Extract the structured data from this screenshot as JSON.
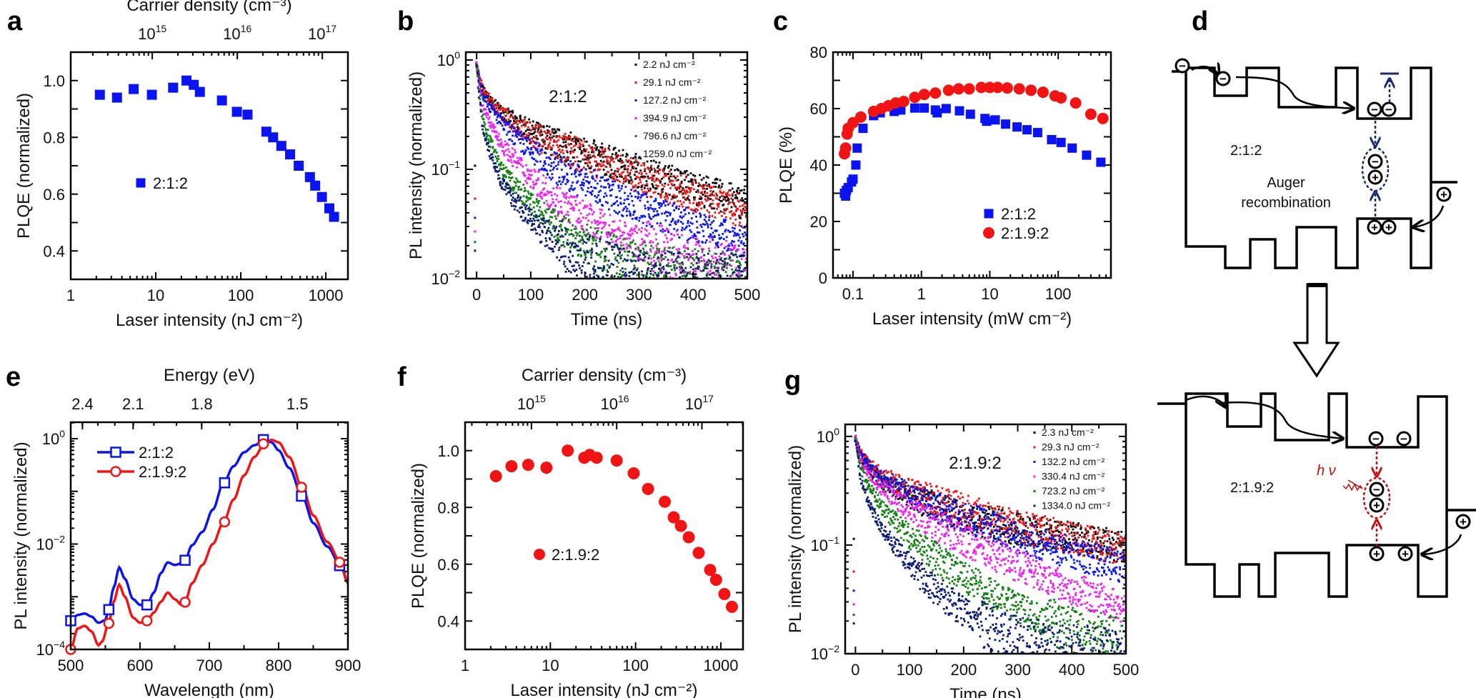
{
  "panel_letters": {
    "a": "a",
    "b": "b",
    "c": "c",
    "d": "d",
    "e": "e",
    "f": "f",
    "g": "g"
  },
  "colors": {
    "blue": "#0a14f0",
    "red": "#f01414",
    "black": "#000000",
    "magenta": "#f020f0",
    "green": "#108010",
    "navy": "#0a1a70",
    "dark_red": "#c01010",
    "dark_blue": "#1a2a6a"
  },
  "chart_data": [
    {
      "panel": "a",
      "type": "scatter",
      "xlabel": "Laser intensity (nJ cm⁻²)",
      "ylabel": "PLQE (normalized)",
      "xscale": "log",
      "xlim": [
        1,
        1820
      ],
      "ylim": [
        0.3,
        1.1
      ],
      "xticks": [
        1,
        10,
        100,
        1000
      ],
      "xtick_labels": [
        "1",
        "10",
        "100",
        "1000"
      ],
      "yticks": [
        0.4,
        0.6,
        0.8,
        1.0
      ],
      "ytick_labels": [
        "0.4",
        "0.6",
        "0.8",
        "1.0"
      ],
      "top_axis": {
        "label": "Carrier density (cm⁻³)",
        "tick_labels": [
          "10¹⁵",
          "10¹⁶",
          "10¹⁷"
        ],
        "tick_bases": [
          "10",
          "10",
          "10"
        ],
        "tick_exps": [
          "15",
          "16",
          "17"
        ],
        "laser_equivalent": [
          9.1,
          91,
          908
        ]
      },
      "legend": "top-left-center",
      "series": [
        {
          "name": "2:1:2",
          "marker": "square",
          "color": "#0a14f0",
          "x": [
            2.2,
            3.5,
            5.5,
            9,
            16,
            23,
            28,
            33,
            60,
            90,
            120,
            200,
            240,
            300,
            380,
            480,
            650,
            750,
            900,
            1100,
            1250
          ],
          "y": [
            0.95,
            0.94,
            0.97,
            0.95,
            0.975,
            1.0,
            0.985,
            0.96,
            0.93,
            0.89,
            0.88,
            0.82,
            0.8,
            0.77,
            0.74,
            0.7,
            0.66,
            0.63,
            0.59,
            0.55,
            0.52
          ]
        }
      ]
    },
    {
      "panel": "b",
      "type": "scatter",
      "xlabel": "Time (ns)",
      "ylabel": "PL intensity (normalized)",
      "annotation": "2:1:2",
      "xscale": "linear",
      "yscale": "log",
      "xlim": [
        -20,
        500
      ],
      "ylim": [
        0.01,
        1.18
      ],
      "xticks": [
        0,
        100,
        200,
        300,
        400,
        500
      ],
      "xtick_labels": [
        "0",
        "100",
        "200",
        "300",
        "400",
        "500"
      ],
      "yticks": [
        1,
        0.1,
        0.01
      ],
      "ytick_bases": [
        "10",
        "10",
        "10"
      ],
      "ytick_exps": [
        "0",
        "−1",
        "−2"
      ],
      "legend": "top-right",
      "x": [
        0,
        10,
        25,
        50,
        100,
        150,
        200,
        300,
        400,
        500
      ],
      "series": [
        {
          "name": "2.2 nJ cm⁻²",
          "color": "#000000",
          "y": [
            0.9,
            0.55,
            0.42,
            0.32,
            0.22,
            0.17,
            0.14,
            0.095,
            0.068,
            0.048
          ]
        },
        {
          "name": "29.1 nJ cm⁻²",
          "color": "#f01414",
          "y": [
            0.9,
            0.55,
            0.42,
            0.31,
            0.21,
            0.16,
            0.13,
            0.085,
            0.058,
            0.04
          ]
        },
        {
          "name": "127.2 nJ cm⁻²",
          "color": "#0a14f0",
          "y": [
            0.9,
            0.5,
            0.37,
            0.25,
            0.145,
            0.1,
            0.075,
            0.045,
            0.03,
            0.022
          ]
        },
        {
          "name": "394.9 nJ cm⁻²",
          "color": "#f020f0",
          "y": [
            0.9,
            0.4,
            0.26,
            0.16,
            0.085,
            0.052,
            0.036,
            0.021,
            0.015,
            0.012
          ]
        },
        {
          "name": "796.6 nJ cm⁻²",
          "color": "#108010",
          "y": [
            0.9,
            0.3,
            0.18,
            0.095,
            0.048,
            0.029,
            0.02,
            0.013,
            0.011,
            0.01
          ]
        },
        {
          "name": "1259.0 nJ cm⁻²",
          "color": "#0a1a70",
          "y": [
            0.9,
            0.25,
            0.14,
            0.07,
            0.034,
            0.021,
            0.015,
            0.011,
            0.01,
            0.01
          ]
        }
      ]
    },
    {
      "panel": "c",
      "type": "scatter",
      "xlabel": "Laser intensity (mW cm⁻²)",
      "ylabel": "PLQE (%)",
      "xscale": "log",
      "xlim": [
        0.051,
        590
      ],
      "ylim": [
        0,
        80
      ],
      "xticks": [
        0.1,
        1,
        10,
        100
      ],
      "xtick_labels": [
        "0.1",
        "1",
        "10",
        "100"
      ],
      "yticks": [
        0,
        20,
        40,
        60,
        80
      ],
      "ytick_labels": [
        "0",
        "20",
        "40",
        "60",
        "80"
      ],
      "legend": "bottom-right",
      "series": [
        {
          "name": "2:1:2",
          "marker": "square",
          "color": "#0a14f0",
          "x": [
            0.075,
            0.078,
            0.08,
            0.085,
            0.095,
            0.1,
            0.11,
            0.115,
            0.14,
            0.2,
            0.25,
            0.4,
            0.5,
            0.8,
            1.1,
            1.6,
            1.7,
            2.3,
            3.6,
            5.2,
            8.5,
            9,
            12,
            17,
            25,
            35,
            50,
            80,
            110,
            160,
            260,
            420
          ],
          "y": [
            30,
            29,
            31,
            32,
            34,
            35,
            40,
            46,
            53,
            57.5,
            58.5,
            59,
            59.5,
            60.2,
            60.2,
            59.5,
            58.5,
            60,
            59.2,
            58,
            56.5,
            55.5,
            56,
            54.5,
            53.5,
            52.5,
            51.5,
            49,
            48,
            46,
            43.5,
            41
          ]
        },
        {
          "name": "2:1.9:2",
          "marker": "circle",
          "color": "#f01414",
          "x": [
            0.075,
            0.078,
            0.082,
            0.085,
            0.1,
            0.13,
            0.2,
            0.26,
            0.33,
            0.42,
            0.55,
            0.8,
            1.1,
            1.6,
            2.5,
            3.5,
            5,
            7.5,
            10,
            13,
            18,
            27,
            40,
            60,
            90,
            110,
            180,
            300,
            450
          ],
          "y": [
            44,
            46,
            51,
            53,
            55,
            57,
            59,
            60,
            61,
            62,
            62.5,
            64,
            65,
            65.5,
            66.5,
            67,
            67,
            67.5,
            67.5,
            67.5,
            67.3,
            67,
            66.5,
            65.8,
            64.5,
            63.8,
            62,
            58,
            56.5
          ]
        }
      ]
    },
    {
      "panel": "e",
      "type": "line",
      "xlabel": "Wavelength (nm)",
      "ylabel": "PL intensity (normalized)",
      "xscale": "linear",
      "yscale": "log",
      "xlim": [
        500,
        900
      ],
      "ylim": [
        0.0001,
        2.05
      ],
      "xticks": [
        500,
        600,
        700,
        800,
        900
      ],
      "xtick_labels": [
        "500",
        "600",
        "700",
        "800",
        "900"
      ],
      "yticks": [
        1,
        0.01,
        0.0001
      ],
      "ytick_bases": [
        "10",
        "10",
        "10"
      ],
      "ytick_exps": [
        "0",
        "−2",
        "−4"
      ],
      "top_axis": {
        "label": "Energy (eV)",
        "tick_labels": [
          "2.4",
          "2.1",
          "1.8",
          "1.5"
        ],
        "wavelength_equivalent": [
          517,
          590,
          689,
          827
        ]
      },
      "legend": "top-left",
      "series": [
        {
          "name": "2:1:2",
          "marker": "open-square",
          "color": "#0a14f0",
          "x": [
            500,
            510,
            520,
            530,
            540,
            550,
            555,
            562,
            570,
            578,
            590,
            600,
            610,
            620,
            630,
            640,
            650,
            660,
            665,
            675,
            690,
            705,
            720,
            735,
            750,
            765,
            780,
            790,
            800,
            815,
            835,
            850,
            870,
            890,
            900
          ],
          "y": [
            0.00035,
            0.00045,
            0.00048,
            0.00042,
            0.00032,
            0.00036,
            0.0006,
            0.0015,
            0.0036,
            0.0022,
            0.0009,
            0.0007,
            0.0007,
            0.0012,
            0.0028,
            0.0045,
            0.004,
            0.0043,
            0.005,
            0.0095,
            0.017,
            0.045,
            0.14,
            0.3,
            0.55,
            0.75,
            0.97,
            0.85,
            0.6,
            0.28,
            0.075,
            0.025,
            0.009,
            0.0038,
            0.0018
          ]
        },
        {
          "name": "2:1.9:2",
          "marker": "open-circle",
          "color": "#f01414",
          "x": [
            500,
            510,
            520,
            530,
            540,
            545,
            555,
            562,
            570,
            578,
            590,
            600,
            610,
            620,
            630,
            640,
            650,
            660,
            665,
            675,
            690,
            705,
            720,
            735,
            750,
            765,
            780,
            790,
            800,
            815,
            835,
            850,
            870,
            890,
            900
          ],
          "y": [
            0.0001,
            0.00025,
            0.00028,
            0.00022,
            0.00012,
            0.00014,
            0.00032,
            0.0008,
            0.0017,
            0.001,
            0.0004,
            0.00032,
            0.00035,
            0.0005,
            0.0008,
            0.0012,
            0.0009,
            0.0007,
            0.0008,
            0.0018,
            0.004,
            0.01,
            0.025,
            0.07,
            0.2,
            0.45,
            0.82,
            0.95,
            0.85,
            0.45,
            0.11,
            0.035,
            0.011,
            0.0044,
            0.0018
          ]
        }
      ],
      "marker_x": [
        500,
        555,
        610,
        665,
        722,
        778,
        833,
        888
      ]
    },
    {
      "panel": "f",
      "type": "scatter",
      "xlabel": "Laser intensity (nJ cm⁻²)",
      "ylabel": "PLQE (normalized)",
      "xscale": "log",
      "xlim": [
        1,
        1820
      ],
      "ylim": [
        0.3,
        1.1
      ],
      "xticks": [
        1,
        10,
        100,
        1000
      ],
      "xtick_labels": [
        "1",
        "10",
        "100",
        "1000"
      ],
      "yticks": [
        0.4,
        0.6,
        0.8,
        1.0
      ],
      "ytick_labels": [
        "0.4",
        "0.6",
        "0.8",
        "1.0"
      ],
      "top_axis": {
        "label": "Carrier density (cm⁻³)",
        "tick_labels": [
          "10¹⁵",
          "10¹⁶",
          "10¹⁷"
        ],
        "tick_bases": [
          "10",
          "10",
          "10"
        ],
        "tick_exps": [
          "15",
          "16",
          "17"
        ],
        "laser_equivalent": [
          6.0,
          57,
          560
        ]
      },
      "legend": "center-left",
      "series": [
        {
          "name": "2:1.9:2",
          "marker": "circle",
          "color": "#f01414",
          "x": [
            2.3,
            3.5,
            5.5,
            9,
            16,
            25,
            29,
            35,
            60,
            95,
            140,
            220,
            280,
            340,
            420,
            550,
            750,
            880,
            1100,
            1350
          ],
          "y": [
            0.91,
            0.945,
            0.95,
            0.94,
            1.0,
            0.975,
            0.985,
            0.975,
            0.965,
            0.92,
            0.865,
            0.82,
            0.765,
            0.735,
            0.695,
            0.64,
            0.58,
            0.545,
            0.495,
            0.45
          ]
        }
      ]
    },
    {
      "panel": "g",
      "type": "scatter",
      "xlabel": "Time (ns)",
      "ylabel": "PL intensity (normalized)",
      "annotation": "2:1.9:2",
      "xscale": "linear",
      "yscale": "log",
      "xlim": [
        -19,
        500
      ],
      "ylim": [
        0.01,
        1.29
      ],
      "xticks": [
        0,
        100,
        200,
        300,
        400,
        500
      ],
      "xtick_labels": [
        "0",
        "100",
        "200",
        "300",
        "400",
        "500"
      ],
      "yticks": [
        1,
        0.1,
        0.01
      ],
      "ytick_bases": [
        "10",
        "10",
        "10"
      ],
      "ytick_exps": [
        "0",
        "−1",
        "−2"
      ],
      "legend": "top-right",
      "x": [
        0,
        10,
        25,
        50,
        100,
        150,
        200,
        300,
        400,
        500
      ],
      "series": [
        {
          "name": "2.3 nJ cm⁻²",
          "color": "#000000",
          "y": [
            0.95,
            0.65,
            0.5,
            0.38,
            0.28,
            0.22,
            0.18,
            0.14,
            0.115,
            0.095
          ]
        },
        {
          "name": "29.3 nJ cm⁻²",
          "color": "#f01414",
          "y": [
            0.95,
            0.7,
            0.55,
            0.44,
            0.32,
            0.26,
            0.21,
            0.15,
            0.115,
            0.09
          ]
        },
        {
          "name": "132.2 nJ cm⁻²",
          "color": "#0a14f0",
          "y": [
            0.95,
            0.68,
            0.55,
            0.42,
            0.3,
            0.23,
            0.18,
            0.12,
            0.085,
            0.06
          ]
        },
        {
          "name": "330.4 nJ cm⁻²",
          "color": "#f020f0",
          "y": [
            0.95,
            0.6,
            0.45,
            0.33,
            0.21,
            0.15,
            0.11,
            0.065,
            0.04,
            0.026
          ]
        },
        {
          "name": "723.2 nJ cm⁻²",
          "color": "#108010",
          "y": [
            0.95,
            0.5,
            0.34,
            0.22,
            0.12,
            0.075,
            0.05,
            0.026,
            0.016,
            0.013
          ]
        },
        {
          "name": "1334.0 nJ cm⁻²",
          "color": "#0a1a70",
          "y": [
            0.95,
            0.4,
            0.24,
            0.14,
            0.065,
            0.038,
            0.024,
            0.013,
            0.011,
            0.01
          ]
        }
      ]
    }
  ],
  "diagram": {
    "top_label": "2:1:2",
    "auger_line1": "Auger",
    "auger_line2": "recombination",
    "bottom_label": "2:1.9:2",
    "photon_label": "h ν",
    "electron_symbol": "−",
    "hole_symbol": "+"
  }
}
